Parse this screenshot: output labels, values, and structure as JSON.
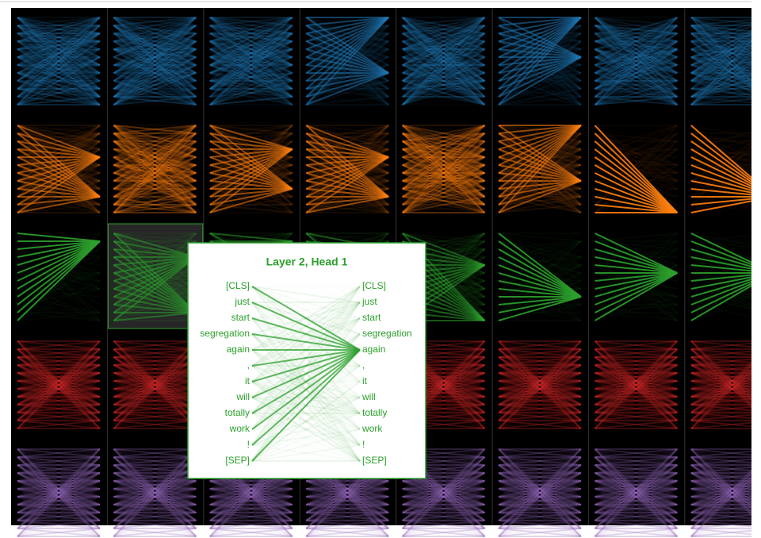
{
  "popup": {
    "title": "Layer 2, Head 1",
    "tokens": [
      "[CLS]",
      "just",
      "start",
      "segregation",
      "again",
      ",",
      "it",
      "will",
      "totally",
      "work",
      "!",
      "[SEP]"
    ]
  }
}
